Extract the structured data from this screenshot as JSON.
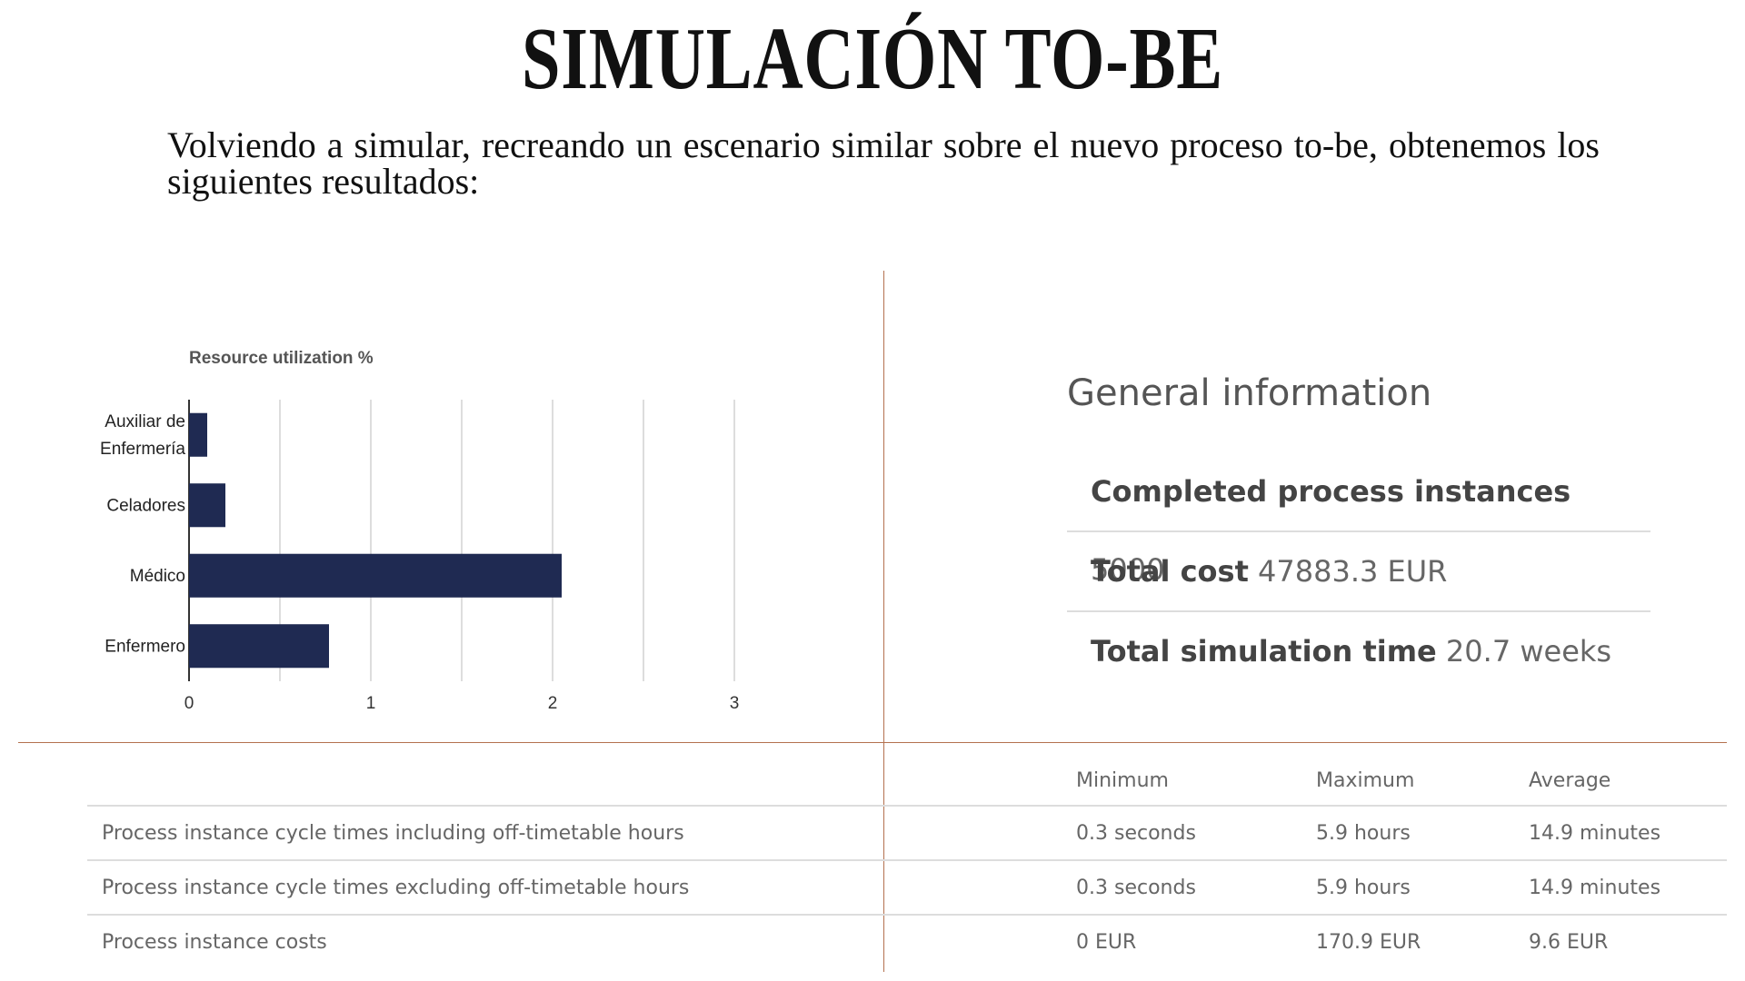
{
  "slide": {
    "title": "SIMULACIÓN TO-BE",
    "intro": "Volviendo a simular, recreando un escenario similar sobre el nuevo proceso to-be, obtenemos los siguientes resultados:"
  },
  "chart_data": {
    "type": "bar",
    "orientation": "horizontal",
    "title": "Resource utilization %",
    "categories": [
      "Auxiliar de Enfermería",
      "Celadores",
      "Médico",
      "Enfermero"
    ],
    "values": [
      0.1,
      0.2,
      2.05,
      0.77
    ],
    "xlim": [
      0,
      3
    ],
    "xticks": [
      0,
      1,
      2,
      3
    ],
    "grid": true,
    "bar_color": "#1f2a52"
  },
  "general_info": {
    "title": "General information",
    "rows": [
      {
        "label": "Completed process instances",
        "value": "5000"
      },
      {
        "label": "Total cost",
        "value": "47883.3 EUR"
      },
      {
        "label": "Total simulation time",
        "value": "20.7 weeks"
      }
    ]
  },
  "stats_table": {
    "headers": [
      "",
      "Minimum",
      "Maximum",
      "Average"
    ],
    "rows": [
      {
        "label": "Process instance cycle times including off-timetable hours",
        "min": "0.3 seconds",
        "max": "5.9 hours",
        "avg": "14.9 minutes"
      },
      {
        "label": "Process instance cycle times excluding off-timetable hours",
        "min": "0.3 seconds",
        "max": "5.9 hours",
        "avg": "14.9 minutes"
      },
      {
        "label": "Process instance costs",
        "min": "0 EUR",
        "max": "170.9 EUR",
        "avg": "9.6 EUR"
      }
    ]
  },
  "colors": {
    "divider": "#b4714f",
    "bar": "#1f2a52",
    "grid": "#dddddd"
  }
}
